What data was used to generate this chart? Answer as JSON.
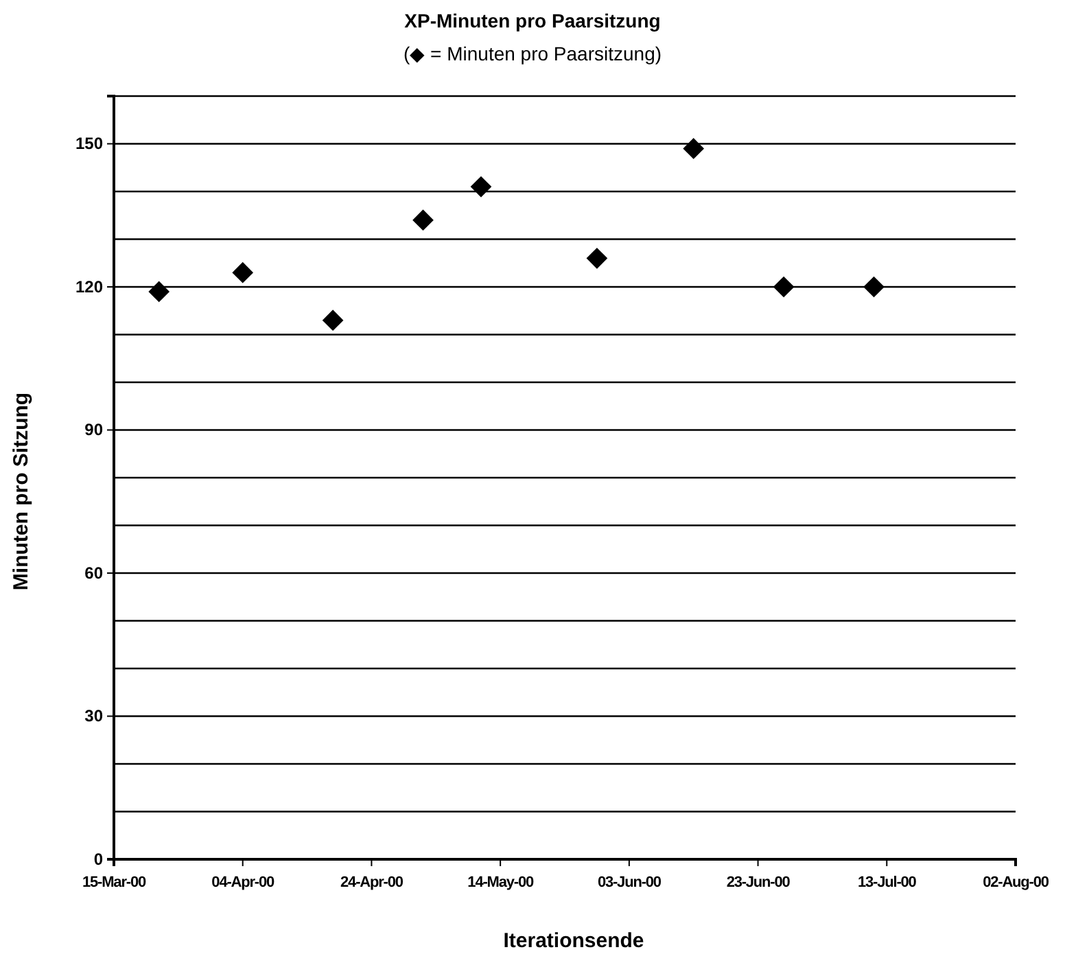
{
  "chart_data": {
    "type": "scatter",
    "title": "XP-Minuten pro Paarsitzung",
    "subtitle": "(◆ = Minuten pro Paarsitzung)",
    "xlabel": "Iterationsende",
    "ylabel": "Minuten pro Sitzung",
    "x": [
      "2000-03-22",
      "2000-04-04",
      "2000-04-18",
      "2000-05-02",
      "2000-05-11",
      "2000-05-29",
      "2000-06-13",
      "2000-06-27",
      "2000-07-11"
    ],
    "series": [
      {
        "color": "#000000",
        "values": [
          119,
          123,
          113,
          134,
          141,
          126,
          149,
          120,
          120
        ]
      }
    ],
    "xlim": [
      "2000-03-15",
      "2000-08-02"
    ],
    "xticks": [
      {
        "value": "2000-03-15",
        "label": "15-Mar-00"
      },
      {
        "value": "2000-04-04",
        "label": "04-Apr-00"
      },
      {
        "value": "2000-04-24",
        "label": "24-Apr-00"
      },
      {
        "value": "2000-05-14",
        "label": "14-May-00"
      },
      {
        "value": "2000-06-03",
        "label": "03-Jun-00"
      },
      {
        "value": "2000-06-23",
        "label": "23-Jun-00"
      },
      {
        "value": "2000-07-13",
        "label": "13-Jul-00"
      },
      {
        "value": "2000-08-02",
        "label": "02-Aug-00"
      }
    ],
    "ylim": [
      0,
      160
    ],
    "yticks": [
      0,
      {
        "value": 10,
        "label": null
      },
      {
        "value": 20,
        "label": null
      },
      30,
      {
        "value": 40,
        "label": null
      },
      {
        "value": 50,
        "label": null
      },
      60,
      {
        "value": 70,
        "label": null
      },
      {
        "value": 80,
        "label": null
      },
      90,
      {
        "value": 100,
        "label": null
      },
      {
        "value": 110,
        "label": null
      },
      120,
      {
        "value": 130,
        "label": null
      },
      {
        "value": 140,
        "label": null
      },
      150,
      {
        "value": 160,
        "label": null
      }
    ],
    "grid": "y",
    "marker": "diamond"
  }
}
